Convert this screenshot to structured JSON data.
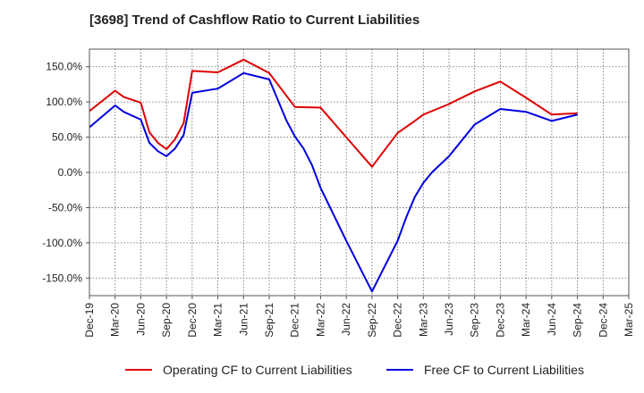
{
  "chart_data": {
    "type": "line",
    "title": "[3698]  Trend of Cashflow Ratio to Current Liabilities",
    "xlabel": "",
    "ylabel": "",
    "grid": true,
    "legend_position": "bottom",
    "ylim": [
      -175,
      175
    ],
    "yticks": [
      150,
      100,
      50,
      0,
      -50,
      -100,
      -150
    ],
    "ytick_labels": [
      "150.0%",
      "100.0%",
      "50.0%",
      "0.0%",
      "-50.0%",
      "-100.0%",
      "-150.0%"
    ],
    "xtick_labels": [
      "Dec-19",
      "Mar-20",
      "Jun-20",
      "Sep-20",
      "Dec-20",
      "Mar-21",
      "Jun-21",
      "Sep-21",
      "Dec-21",
      "Mar-22",
      "Jun-22",
      "Sep-22",
      "Dec-22",
      "Mar-23",
      "Jun-23",
      "Sep-23",
      "Dec-23",
      "Mar-24",
      "Jun-24",
      "Sep-24",
      "Dec-24",
      "Mar-25"
    ],
    "series": [
      {
        "name": "Operating CF to Current Liabilities",
        "color": "#e00000",
        "points": [
          [
            "Dec-19",
            87
          ],
          [
            "Mar-20",
            116
          ],
          [
            "Apr-20",
            107
          ],
          [
            "Jun-20",
            99
          ],
          [
            "Jul-20",
            57
          ],
          [
            "Aug-20",
            42
          ],
          [
            "Sep-20",
            33
          ],
          [
            "Oct-20",
            47
          ],
          [
            "Nov-20",
            70
          ],
          [
            "Dec-20",
            144
          ],
          [
            "Mar-21",
            142
          ],
          [
            "Jun-21",
            160
          ],
          [
            "Sep-21",
            141
          ],
          [
            "Dec-21",
            93
          ],
          [
            "Mar-22",
            92
          ],
          [
            "Jun-22",
            50
          ],
          [
            "Sep-22",
            8
          ],
          [
            "Dec-22",
            56
          ],
          [
            "Feb-23",
            73
          ],
          [
            "Mar-23",
            82
          ],
          [
            "Jun-23",
            97
          ],
          [
            "Sep-23",
            115
          ],
          [
            "Dec-23",
            129
          ],
          [
            "Mar-24",
            106
          ],
          [
            "Jun-24",
            82
          ],
          [
            "Sep-24",
            84
          ]
        ]
      },
      {
        "name": "Free CF to Current Liabilities",
        "color": "#0000e0",
        "points": [
          [
            "Dec-19",
            64
          ],
          [
            "Mar-20",
            95
          ],
          [
            "Apr-20",
            86
          ],
          [
            "Jun-20",
            75
          ],
          [
            "Jul-20",
            42
          ],
          [
            "Aug-20",
            30
          ],
          [
            "Sep-20",
            23
          ],
          [
            "Oct-20",
            34
          ],
          [
            "Nov-20",
            53
          ],
          [
            "Dec-20",
            113
          ],
          [
            "Mar-21",
            119
          ],
          [
            "Jun-21",
            141
          ],
          [
            "Sep-21",
            132
          ],
          [
            "Oct-21",
            103
          ],
          [
            "Nov-21",
            74
          ],
          [
            "Dec-21",
            51
          ],
          [
            "Jan-22",
            34
          ],
          [
            "Feb-22",
            10
          ],
          [
            "Mar-22",
            -22
          ],
          [
            "Jun-22",
            -97
          ],
          [
            "Sep-22",
            -169
          ],
          [
            "Dec-22",
            -97
          ],
          [
            "Jan-23",
            -64
          ],
          [
            "Feb-23",
            -35
          ],
          [
            "Mar-23",
            -15
          ],
          [
            "Apr-23",
            0
          ],
          [
            "Jun-23",
            23
          ],
          [
            "Sep-23",
            68
          ],
          [
            "Dec-23",
            90
          ],
          [
            "Mar-24",
            86
          ],
          [
            "Jun-24",
            73
          ],
          [
            "Sep-24",
            82
          ]
        ]
      }
    ]
  }
}
